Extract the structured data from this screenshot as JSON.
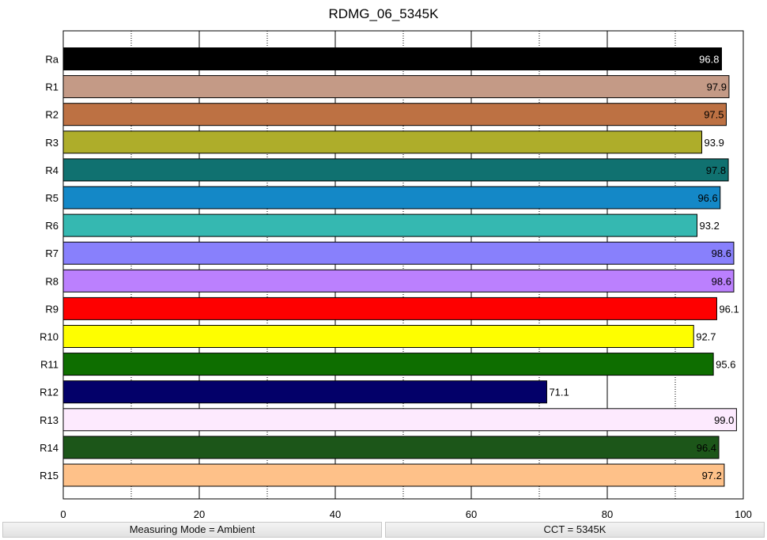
{
  "chart_data": {
    "type": "bar",
    "orientation": "horizontal",
    "title": "RDMG_06_5345K",
    "categories": [
      "Ra",
      "R1",
      "R2",
      "R3",
      "R4",
      "R5",
      "R6",
      "R7",
      "R8",
      "R9",
      "R10",
      "R11",
      "R12",
      "R13",
      "R14",
      "R15"
    ],
    "values": [
      96.8,
      97.9,
      97.5,
      93.9,
      97.8,
      96.6,
      93.2,
      98.6,
      98.6,
      96.1,
      92.7,
      95.6,
      71.1,
      99.0,
      96.4,
      97.2
    ],
    "value_labels": [
      "96.8",
      "97.9",
      "97.5",
      "93.9",
      "97.8",
      "96.6",
      "93.2",
      "98.6",
      "98.6",
      "96.1",
      "92.7",
      "95.6",
      "71.1",
      "99.0",
      "96.4",
      "97.2"
    ],
    "colors": [
      "#000000",
      "#c49a86",
      "#bd7143",
      "#aead2a",
      "#107170",
      "#1488c7",
      "#35b8b1",
      "#8880fc",
      "#bb80fe",
      "#fe0000",
      "#fefe00",
      "#0e6e00",
      "#030069",
      "#fdeafe",
      "#1c5619",
      "#fec189"
    ],
    "label_inside": [
      true,
      true,
      true,
      false,
      true,
      true,
      false,
      true,
      true,
      false,
      false,
      false,
      false,
      true,
      true,
      true
    ],
    "label_colors": [
      "#ffffff",
      "#000000",
      "#000000",
      "#000000",
      "#000000",
      "#000000",
      "#000000",
      "#000000",
      "#000000",
      "#000000",
      "#000000",
      "#000000",
      "#000000",
      "#000000",
      "#000000",
      "#000000"
    ],
    "xlim": [
      0,
      100
    ],
    "xticks": [
      0,
      20,
      40,
      60,
      80,
      100
    ],
    "xtick_labels": [
      "0",
      "20",
      "40",
      "60",
      "80",
      "100"
    ],
    "minor_grid": [
      10,
      30,
      50,
      70,
      90
    ],
    "major_grid": [
      20,
      40,
      60,
      80
    ],
    "xlabel": "",
    "ylabel": ""
  },
  "status": {
    "measuring_mode": "Measuring Mode = Ambient",
    "cct": "CCT = 5345K"
  }
}
